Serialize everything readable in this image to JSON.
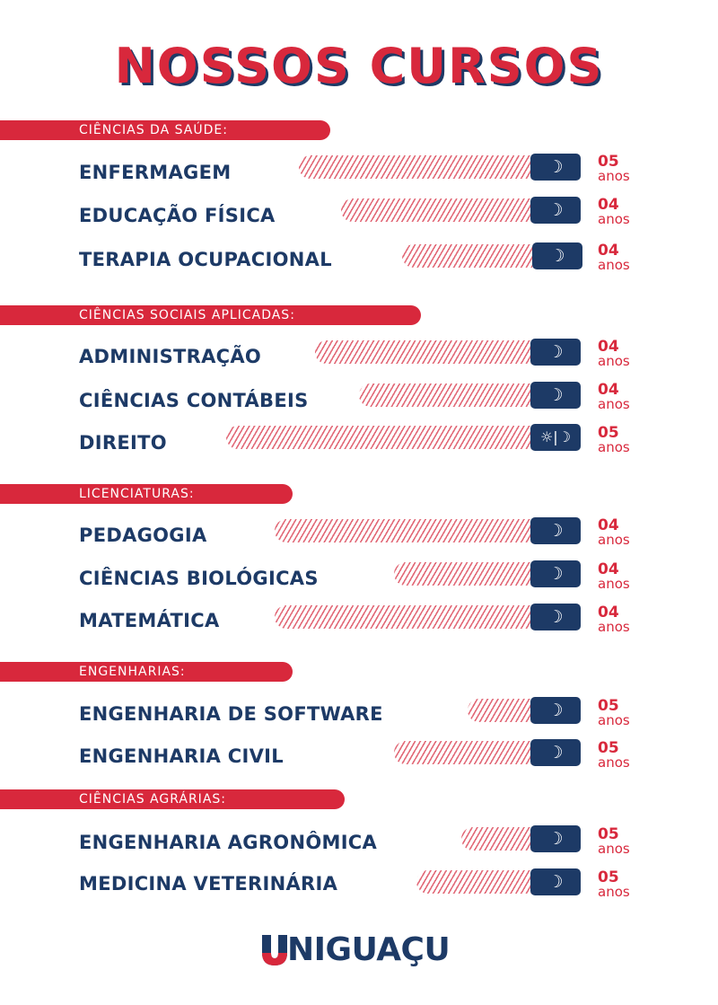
{
  "title": "NOSSOS CURSOS",
  "brand": {
    "name": "NIGUAÇU",
    "mark_letter": "U",
    "colors": {
      "red": "#d8283c",
      "navy": "#1d3a66",
      "hatch": "#e26a78"
    }
  },
  "icons": {
    "night": "☽",
    "day_night": "☼|☽"
  },
  "categories": [
    {
      "label": "CIÊNCIAS DA SAÚDE:",
      "courses": [
        {
          "name": "ENFERMAGEM",
          "shift": "☽",
          "duration": "05",
          "unit": "anos"
        },
        {
          "name": "EDUCAÇÃO FÍSICA",
          "shift": "☽",
          "duration": "04",
          "unit": "anos"
        },
        {
          "name": "TERAPIA OCUPACIONAL",
          "shift": "☽",
          "duration": "04",
          "unit": "anos"
        }
      ]
    },
    {
      "label": "CIÊNCIAS SOCIAIS APLICADAS:",
      "courses": [
        {
          "name": "ADMINISTRAÇÃO",
          "shift": "☽",
          "duration": "04",
          "unit": "anos"
        },
        {
          "name": "CIÊNCIAS CONTÁBEIS",
          "shift": "☽",
          "duration": "04",
          "unit": "anos"
        },
        {
          "name": "DIREITO",
          "shift": "☼|☽",
          "duration": "05",
          "unit": "anos"
        }
      ]
    },
    {
      "label": "LICENCIATURAS:",
      "courses": [
        {
          "name": "PEDAGOGIA",
          "shift": "☽",
          "duration": "04",
          "unit": "anos"
        },
        {
          "name": "CIÊNCIAS BIOLÓGICAS",
          "shift": "☽",
          "duration": "04",
          "unit": "anos"
        },
        {
          "name": "MATEMÁTICA",
          "shift": "☽",
          "duration": "04",
          "unit": "anos"
        }
      ]
    },
    {
      "label": "ENGENHARIAS:",
      "courses": [
        {
          "name": "ENGENHARIA DE SOFTWARE",
          "shift": "☽",
          "duration": "05",
          "unit": "anos"
        },
        {
          "name": "ENGENHARIA CIVIL",
          "shift": "☽",
          "duration": "05",
          "unit": "anos"
        }
      ]
    },
    {
      "label": "CIÊNCIAS AGRÁRIAS:",
      "courses": [
        {
          "name": "ENGENHARIA AGRONÔMICA",
          "shift": "☽",
          "duration": "05",
          "unit": "anos"
        },
        {
          "name": "MEDICINA VETERINÁRIA",
          "shift": "☽",
          "duration": "05",
          "unit": "anos"
        }
      ]
    }
  ]
}
